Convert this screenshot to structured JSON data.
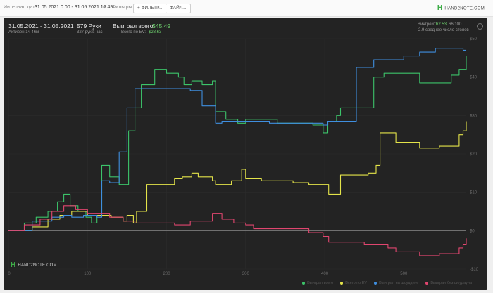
{
  "topbar": {
    "interval_label": "Интервал дат:",
    "interval_value": "31.05.2021 0:00 - 31.05.2021 16:49",
    "filters_label": "Фильтры:",
    "filter_button": "+ ФИЛЬТР...",
    "file_button": "ФАЙЛ...",
    "logo_text": "HAND2NOTE.COM"
  },
  "header": {
    "date_range": "31.05.2021 - 31.05.2021",
    "active": "Активен 1ч 46м",
    "hands": "579 Руки",
    "hands_rate": "327 рук в час",
    "won_total_label": "Выиграл всего:",
    "won_total_value": "$45.49",
    "ev_label": "Всего по EV:",
    "ev_value": "$28.63",
    "rake_label": "Вингрейт:",
    "rake_value": "62.53",
    "rake_suffix": "66/100",
    "tables": "2.9 среднее число столов"
  },
  "chart_logo": "HAND2NOTE.COM",
  "colors": {
    "won_total": "#3cc36a",
    "ev": "#e4e44a",
    "showdown": "#3f8fe0",
    "no_showdown": "#e0466f"
  },
  "chart_data": {
    "type": "line",
    "xlim": [
      0,
      579
    ],
    "ylim": [
      -10,
      50
    ],
    "x_ticks": [
      0,
      100,
      200,
      300,
      400,
      500
    ],
    "y_ticks": [
      50,
      40,
      30,
      20,
      10,
      0,
      -10
    ],
    "y_tick_labels": [
      "$50",
      "$40",
      "$30",
      "$20",
      "$10",
      "$0",
      "-$10"
    ],
    "legend": [
      "Выиграл всего",
      "Всего по EV",
      "Выиграл на шоудауне",
      "Выиграл без шоудауна"
    ],
    "series": [
      {
        "name": "Выиграл всего",
        "color": "#3cc36a",
        "x": [
          0,
          20,
          35,
          50,
          62,
          70,
          78,
          88,
          98,
          105,
          112,
          118,
          128,
          140,
          152,
          160,
          168,
          175,
          185,
          200,
          215,
          222,
          232,
          245,
          258,
          262,
          275,
          290,
          300,
          320,
          340,
          360,
          385,
          398,
          404,
          415,
          420,
          440,
          462,
          475,
          495,
          520,
          545,
          560,
          570,
          579
        ],
        "values": [
          0,
          2,
          3.5,
          5,
          7.5,
          9.5,
          6.5,
          5,
          3.5,
          2,
          4,
          17,
          14,
          12,
          26,
          32,
          38,
          38,
          42,
          41,
          40,
          38,
          39,
          38,
          39,
          31,
          29,
          28,
          29,
          29,
          28,
          28,
          27.5,
          25.5,
          28.5,
          30,
          32,
          32,
          40,
          41,
          41,
          38.5,
          38.5,
          40.5,
          42,
          45.5
        ]
      },
      {
        "name": "Всего по EV",
        "color": "#e4e44a",
        "x": [
          0,
          30,
          50,
          65,
          80,
          100,
          115,
          130,
          145,
          150,
          158,
          162,
          175,
          185,
          210,
          220,
          232,
          240,
          258,
          262,
          282,
          295,
          300,
          320,
          345,
          360,
          380,
          400,
          405,
          420,
          435,
          455,
          465,
          470,
          490,
          520,
          545,
          570,
          575,
          579
        ],
        "values": [
          0,
          1,
          3,
          4,
          5,
          4,
          4,
          3.5,
          2.5,
          4,
          2,
          5,
          12,
          12,
          13.5,
          14,
          15,
          14,
          13,
          12,
          13,
          16,
          13.5,
          13,
          13,
          12.5,
          12,
          12,
          9.5,
          14.5,
          14.5,
          15,
          17,
          25.5,
          23,
          21.5,
          22,
          25,
          26,
          28.5
        ]
      },
      {
        "name": "Выиграл на шоудауне",
        "color": "#3f8fe0",
        "x": [
          0,
          30,
          55,
          70,
          80,
          95,
          105,
          112,
          118,
          128,
          140,
          150,
          160,
          175,
          200,
          225,
          230,
          245,
          258,
          262,
          270,
          290,
          310,
          330,
          360,
          380,
          398,
          404,
          418,
          440,
          462,
          475,
          500,
          520,
          540,
          560,
          575,
          579
        ],
        "values": [
          0,
          2.5,
          3.5,
          4,
          3.5,
          4,
          4,
          3.5,
          13,
          12.5,
          20.5,
          32,
          37,
          37,
          37,
          37,
          36.5,
          32.5,
          32.5,
          28,
          28.5,
          28.5,
          28.5,
          28,
          28,
          28,
          27.5,
          28.5,
          28.5,
          42.5,
          44.5,
          44.5,
          45.5,
          46.5,
          47.5,
          47.5,
          47,
          47
        ]
      },
      {
        "name": "Выиграл без шоудауна",
        "color": "#e0466f",
        "x": [
          0,
          20,
          40,
          55,
          70,
          85,
          100,
          112,
          128,
          145,
          160,
          180,
          210,
          230,
          258,
          270,
          285,
          300,
          310,
          340,
          380,
          398,
          405,
          420,
          450,
          480,
          490,
          520,
          545,
          570,
          575,
          579
        ],
        "values": [
          0,
          1.5,
          3,
          5,
          6.5,
          5.5,
          4.5,
          4.5,
          3.5,
          2.5,
          2,
          2,
          1.5,
          2.5,
          4.5,
          3,
          2,
          1.5,
          0.5,
          0.5,
          -0.5,
          -1.5,
          -3,
          -3,
          -3.5,
          -4.5,
          -5.5,
          -6.5,
          -6,
          -4.5,
          -3.5,
          -2
        ]
      }
    ]
  }
}
